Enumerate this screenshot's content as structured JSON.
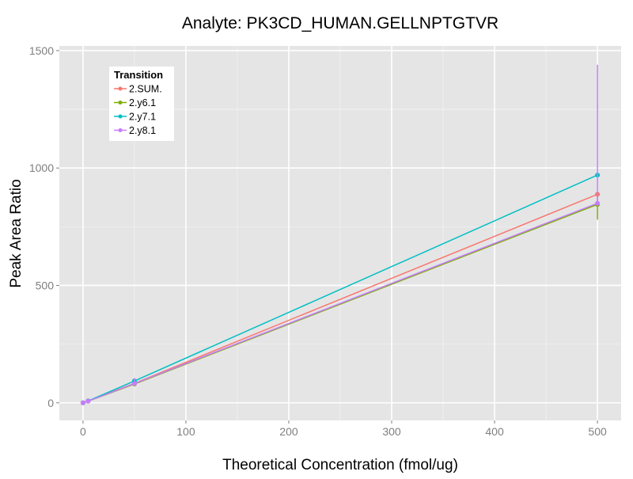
{
  "chart_data": {
    "type": "line",
    "title": "Analyte: PK3CD_HUMAN.GELLNPTGTVR",
    "xlabel": "Theoretical Concentration (fmol/ug)",
    "ylabel": "Peak Area Ratio",
    "xlim": [
      -23,
      523
    ],
    "ylim": [
      -75,
      1520
    ],
    "xticks": [
      0,
      100,
      200,
      300,
      400,
      500
    ],
    "yticks": [
      0,
      500,
      1000,
      1500
    ],
    "xtick_labels": [
      "0",
      "100",
      "200",
      "300",
      "400",
      "500"
    ],
    "ytick_labels": [
      "0",
      "500",
      "1000",
      "1500"
    ],
    "grid": true,
    "legend": {
      "title": "Transition",
      "placement": "top-left"
    },
    "x": [
      0,
      5,
      50,
      500
    ],
    "series": [
      {
        "name": "2.SUM.",
        "color": "#F8766D",
        "values": [
          0,
          8,
          83,
          888
        ],
        "error": [
          [
            0,
            0
          ],
          [
            8,
            8
          ],
          [
            80,
            86
          ],
          [
            888,
            888
          ]
        ]
      },
      {
        "name": "2.y6.1",
        "color": "#7CAE00",
        "values": [
          0,
          7,
          80,
          845
        ],
        "error": [
          [
            0,
            0
          ],
          [
            7,
            7
          ],
          [
            77,
            83
          ],
          [
            780,
            900
          ]
        ]
      },
      {
        "name": "2.y7.1",
        "color": "#00BFC4",
        "values": [
          0,
          8,
          93,
          970
        ],
        "error": [
          [
            0,
            0
          ],
          [
            8,
            8
          ],
          [
            88,
            100
          ],
          [
            960,
            980
          ]
        ]
      },
      {
        "name": "2.y8.1",
        "color": "#C77CFF",
        "values": [
          0,
          7,
          82,
          850
        ],
        "error": [
          [
            0,
            0
          ],
          [
            7,
            7
          ],
          [
            75,
            105
          ],
          [
            840,
            1440
          ]
        ]
      }
    ]
  }
}
